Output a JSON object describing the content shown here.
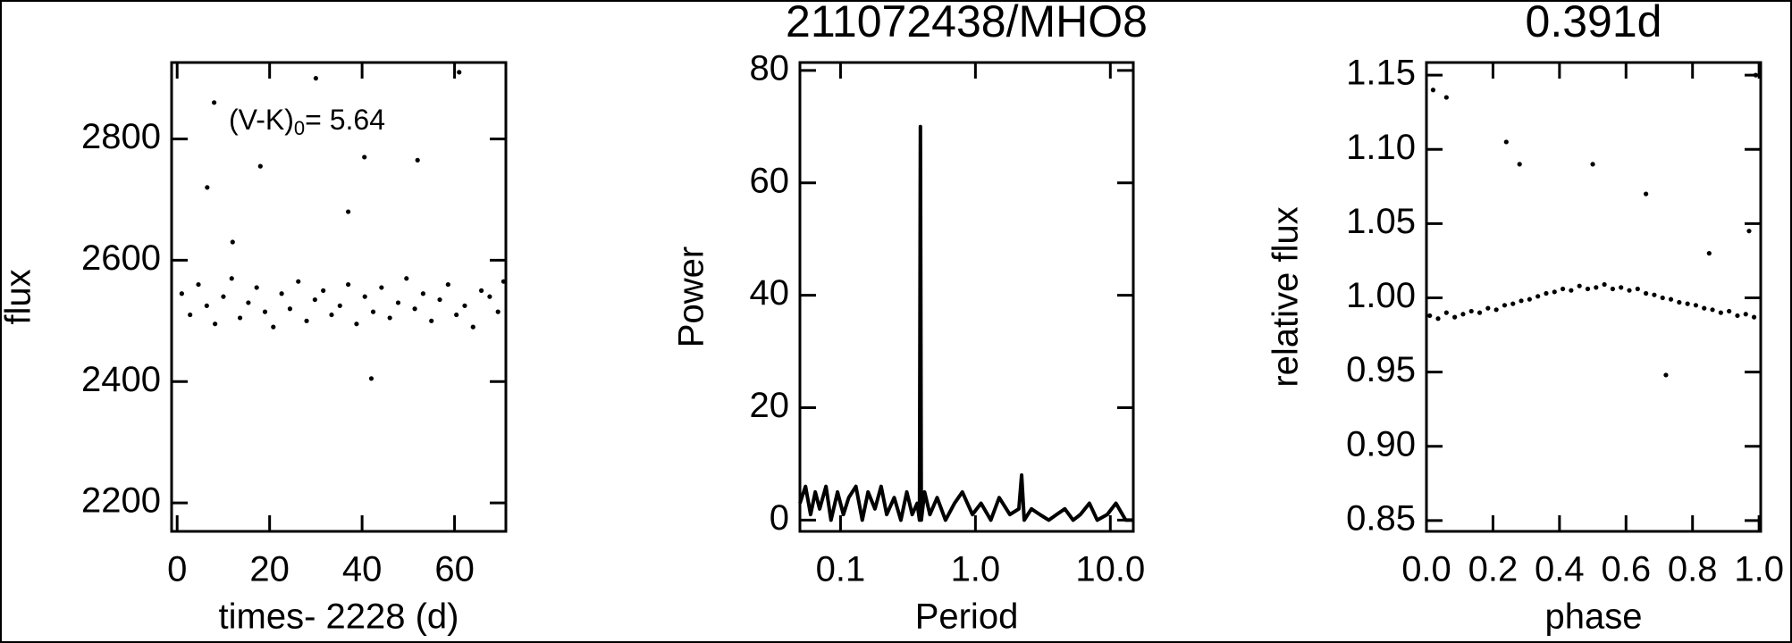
{
  "chart_data": [
    {
      "type": "scatter",
      "xlabel": "times- 2228 (d)",
      "ylabel": "flux",
      "annotation": {
        "text": "(V-K)",
        "subscript": "0",
        "suffix": "= 5.64"
      },
      "color": "#000000",
      "x": [
        1,
        2.8,
        4.6,
        6.4,
        8.2,
        10,
        11.8,
        13.6,
        15.4,
        17.2,
        19,
        20.8,
        22.6,
        24.4,
        26.2,
        28,
        29.8,
        31.6,
        33.4,
        35.2,
        37,
        38.8,
        40.6,
        42.4,
        44.2,
        46,
        47.8,
        49.6,
        51.4,
        53.2,
        55,
        56.8,
        58.6,
        60.4,
        62.2,
        64,
        65.8,
        67.6,
        69.4,
        70.6,
        8,
        6.5,
        18,
        37,
        40.5,
        52,
        42,
        30,
        61,
        12
      ],
      "y": [
        2545,
        2510,
        2560,
        2525,
        2495,
        2540,
        2570,
        2505,
        2530,
        2555,
        2515,
        2490,
        2545,
        2520,
        2565,
        2500,
        2535,
        2550,
        2510,
        2525,
        2560,
        2495,
        2540,
        2515,
        2555,
        2505,
        2530,
        2570,
        2520,
        2545,
        2500,
        2535,
        2560,
        2510,
        2525,
        2490,
        2550,
        2540,
        2515,
        2565,
        2860,
        2720,
        2755,
        2680,
        2770,
        2765,
        2405,
        2900,
        2910,
        2630
      ],
      "xlim": [
        -1.2,
        71.1
      ],
      "xticks": [
        0,
        20,
        40,
        60
      ],
      "ylim": [
        2153,
        2926
      ],
      "yticks": [
        2200,
        2400,
        2600,
        2800
      ]
    },
    {
      "type": "line",
      "title": "211072438/MHO8",
      "xlabel": "Period",
      "ylabel": "Power",
      "xscale": "log",
      "color": "#000000",
      "x": [
        0.05,
        0.055,
        0.06,
        0.065,
        0.07,
        0.078,
        0.085,
        0.095,
        0.105,
        0.115,
        0.13,
        0.145,
        0.16,
        0.18,
        0.2,
        0.22,
        0.25,
        0.28,
        0.31,
        0.34,
        0.37,
        0.385,
        0.391,
        0.397,
        0.42,
        0.46,
        0.52,
        0.6,
        0.7,
        0.8,
        0.95,
        1.1,
        1.3,
        1.5,
        1.8,
        2.1,
        2.2,
        2.3,
        2.6,
        3,
        3.5,
        4,
        4.6,
        5.3,
        6,
        7,
        8,
        9.5,
        11,
        13,
        14.8
      ],
      "y": [
        3,
        6,
        1,
        5,
        2,
        6,
        0,
        5,
        1,
        4,
        6,
        0,
        5,
        2,
        6,
        1,
        4,
        0,
        5,
        1,
        3,
        0,
        70,
        0,
        5,
        1,
        4,
        0,
        3,
        5,
        1,
        3,
        0,
        4,
        1,
        2,
        8,
        0,
        2,
        1,
        0,
        1,
        2,
        0,
        1,
        3,
        0,
        1,
        3,
        0,
        0
      ],
      "xlim": [
        0.05,
        14.8
      ],
      "xticks": [
        0.1,
        {
          "value": 1,
          "label": "1.0"
        },
        {
          "value": 10,
          "label": "10.0"
        }
      ],
      "ylim": [
        -2,
        81.4
      ],
      "yticks": [
        0,
        20,
        40,
        60,
        80
      ]
    },
    {
      "type": "scatter",
      "title": "0.391d",
      "xlabel": "phase",
      "ylabel": "relative flux",
      "color": "#000000",
      "x": [
        0.01,
        0.035,
        0.06,
        0.085,
        0.11,
        0.135,
        0.16,
        0.185,
        0.21,
        0.235,
        0.26,
        0.285,
        0.31,
        0.335,
        0.36,
        0.385,
        0.41,
        0.435,
        0.46,
        0.485,
        0.51,
        0.535,
        0.56,
        0.585,
        0.61,
        0.635,
        0.66,
        0.685,
        0.71,
        0.735,
        0.76,
        0.785,
        0.81,
        0.835,
        0.86,
        0.885,
        0.91,
        0.935,
        0.96,
        0.985,
        0.02,
        0.06,
        0.24,
        0.28,
        0.5,
        0.66,
        0.72,
        0.85,
        0.97,
        0.99
      ],
      "y": [
        0.988,
        0.986,
        0.99,
        0.987,
        0.989,
        0.991,
        0.99,
        0.993,
        0.992,
        0.995,
        0.996,
        0.998,
        0.999,
        1.001,
        1.003,
        1.004,
        1.006,
        1.005,
        1.008,
        1.006,
        1.007,
        1.009,
        1.006,
        1.007,
        1.005,
        1.006,
        1.003,
        1.002,
        1.0,
        0.999,
        0.997,
        0.996,
        0.995,
        0.993,
        0.992,
        0.99,
        0.991,
        0.988,
        0.989,
        0.987,
        1.14,
        1.135,
        1.105,
        1.09,
        1.09,
        1.07,
        0.948,
        1.03,
        1.045,
        1.15
      ],
      "xlim": [
        0,
        1.005
      ],
      "xticks": [
        {
          "value": 0,
          "label": "0.0"
        },
        0.2,
        0.4,
        0.6,
        0.8,
        {
          "value": 1,
          "label": "1.0"
        }
      ],
      "ylim": [
        0.8427,
        1.1585
      ],
      "yticks": [
        0.85,
        {
          "value": 0.9,
          "label": "0.90"
        },
        0.95,
        {
          "value": 1,
          "label": "1.00"
        },
        1.05,
        {
          "value": 1.1,
          "label": "1.10"
        },
        1.15
      ]
    }
  ]
}
